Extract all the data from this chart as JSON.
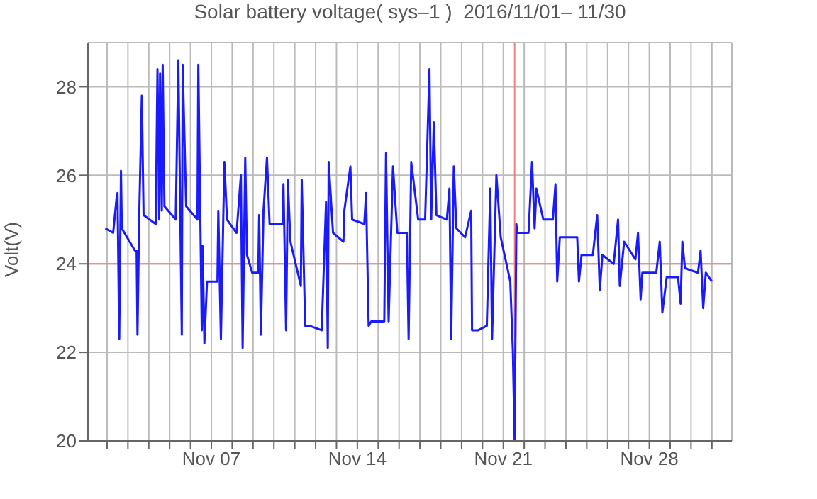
{
  "chart_data": {
    "type": "line",
    "title": "Solar battery voltage( sys–1 )  2016/11/01– 11/30",
    "ylabel": "Volt(V)",
    "x": [
      "2016-11-01T22:00",
      "2016-11-02T07:00",
      "2016-11-02T11:00",
      "2016-11-02T12:00",
      "2016-11-02T14:00",
      "2016-11-02T16:00",
      "2016-11-02T17:00",
      "2016-11-03T08:00",
      "2016-11-03T10:00",
      "2016-11-03T11:00",
      "2016-11-03T13:00",
      "2016-11-03T16:00",
      "2016-11-03T18:00",
      "2016-11-04T08:00",
      "2016-11-04T10:00",
      "2016-11-04T12:00",
      "2016-11-04T13:00",
      "2016-11-04T15:00",
      "2016-11-04T16:00",
      "2016-11-04T18:00",
      "2016-11-05T07:00",
      "2016-11-05T10:00",
      "2016-11-05T14:00",
      "2016-11-05T15:00",
      "2016-11-05T19:00",
      "2016-11-06T08:00",
      "2016-11-06T09:00",
      "2016-11-06T13:00",
      "2016-11-06T14:00",
      "2016-11-06T16:00",
      "2016-11-06T19:00",
      "2016-11-07T07:00",
      "2016-11-07T08:00",
      "2016-11-07T11:00",
      "2016-11-07T15:00",
      "2016-11-07T18:00",
      "2016-11-08T05:00",
      "2016-11-08T10:00",
      "2016-11-08T12:00",
      "2016-11-08T15:00",
      "2016-11-08T17:00",
      "2016-11-08T23:00",
      "2016-11-09T06:00",
      "2016-11-09T07:00",
      "2016-11-09T09:00",
      "2016-11-09T12:00",
      "2016-11-09T16:00",
      "2016-11-09T19:00",
      "2016-11-10T10:00",
      "2016-11-10T11:00",
      "2016-11-10T14:00",
      "2016-11-10T16:00",
      "2016-11-10T19:00",
      "2016-11-11T07:00",
      "2016-11-11T08:00",
      "2016-11-11T12:00",
      "2016-11-11T17:00",
      "2016-11-12T07:00",
      "2016-11-12T12:00",
      "2016-11-12T14:00",
      "2016-11-12T15:00",
      "2016-11-12T20:00",
      "2016-11-13T08:00",
      "2016-11-13T09:00",
      "2016-11-13T16:00",
      "2016-11-13T18:00",
      "2016-11-14T08:00",
      "2016-11-14T10:00",
      "2016-11-14T13:00",
      "2016-11-14T16:00",
      "2016-11-15T07:00",
      "2016-11-15T09:00",
      "2016-11-15T12:00",
      "2016-11-15T17:00",
      "2016-11-15T22:00",
      "2016-11-16T09:00",
      "2016-11-16T11:00",
      "2016-11-16T14:00",
      "2016-11-16T22:00",
      "2016-11-17T06:00",
      "2016-11-17T11:00",
      "2016-11-17T13:00",
      "2016-11-17T16:00",
      "2016-11-17T19:00",
      "2016-11-18T07:00",
      "2016-11-18T10:00",
      "2016-11-18T12:00",
      "2016-11-18T15:00",
      "2016-11-18T18:00",
      "2016-11-19T04:00",
      "2016-11-19T11:00",
      "2016-11-19T12:00",
      "2016-11-19T19:00",
      "2016-11-20T05:00",
      "2016-11-20T09:00",
      "2016-11-20T11:00",
      "2016-11-20T16:00",
      "2016-11-20T21:00",
      "2016-11-21T08:00",
      "2016-11-21T11:00",
      "2016-11-21T13:00",
      "2016-11-21T15:00",
      "2016-11-21T16:00",
      "2016-11-22T05:00",
      "2016-11-22T09:00",
      "2016-11-22T12:00",
      "2016-11-22T14:00",
      "2016-11-22T22:00",
      "2016-11-23T09:00",
      "2016-11-23T12:00",
      "2016-11-23T14:00",
      "2016-11-23T17:00",
      "2016-11-24T13:00",
      "2016-11-24T15:00",
      "2016-11-24T18:00",
      "2016-11-25T07:00",
      "2016-11-25T12:00",
      "2016-11-25T15:00",
      "2016-11-25T18:00",
      "2016-11-26T07:00",
      "2016-11-26T12:00",
      "2016-11-26T14:00",
      "2016-11-26T19:00",
      "2016-11-27T08:00",
      "2016-11-27T11:00",
      "2016-11-27T14:00",
      "2016-11-27T16:00",
      "2016-11-28T08:00",
      "2016-11-28T12:00",
      "2016-11-28T15:00",
      "2016-11-28T20:00",
      "2016-11-29T09:00",
      "2016-11-29T12:00",
      "2016-11-29T14:00",
      "2016-11-29T17:00",
      "2016-11-30T08:00",
      "2016-11-30T11:00",
      "2016-11-30T14:00",
      "2016-11-30T17:00",
      "2016-12-01T00:00"
    ],
    "series": [
      {
        "color": "#1a1aff",
        "values": [
          24.8,
          24.7,
          25.5,
          25.6,
          22.3,
          26.1,
          24.8,
          24.3,
          24.3,
          22.4,
          25.1,
          27.8,
          25.1,
          24.9,
          28.4,
          25.0,
          28.3,
          25.2,
          28.5,
          25.3,
          25.0,
          28.6,
          22.4,
          28.5,
          25.3,
          25.0,
          28.5,
          22.5,
          24.4,
          22.2,
          23.6,
          23.6,
          25.2,
          22.3,
          26.3,
          25.0,
          24.7,
          26.0,
          22.1,
          26.4,
          24.2,
          23.8,
          23.8,
          25.1,
          22.4,
          25.2,
          26.4,
          24.9,
          24.9,
          25.8,
          22.5,
          25.9,
          24.5,
          23.5,
          25.9,
          22.6,
          22.6,
          22.5,
          25.4,
          22.1,
          26.3,
          24.7,
          24.5,
          25.2,
          26.2,
          25.0,
          24.9,
          25.6,
          22.6,
          22.7,
          22.7,
          26.5,
          22.7,
          26.2,
          24.7,
          24.7,
          22.3,
          26.3,
          25.0,
          25.0,
          28.4,
          25.0,
          27.2,
          25.1,
          25.0,
          25.7,
          22.3,
          26.2,
          24.8,
          24.6,
          25.2,
          22.5,
          22.5,
          22.6,
          25.7,
          22.3,
          26.0,
          24.6,
          23.6,
          22.0,
          20.0,
          24.9,
          24.7,
          24.7,
          26.3,
          24.8,
          25.7,
          25.0,
          25.0,
          25.8,
          23.6,
          24.6,
          24.6,
          23.6,
          24.2,
          24.2,
          25.1,
          23.4,
          24.2,
          24.0,
          25.0,
          23.5,
          24.5,
          24.1,
          24.7,
          23.2,
          23.8,
          23.8,
          24.5,
          22.9,
          23.7,
          23.7,
          23.1,
          24.5,
          23.9,
          23.8,
          24.3,
          23.0,
          23.8,
          23.6
        ]
      }
    ],
    "xlim": [
      "2016-11-01T02:00",
      "2016-12-01T23:00"
    ],
    "xticks": [
      {
        "value": "2016-11-02",
        "label": null
      },
      {
        "value": "2016-11-03",
        "label": null
      },
      {
        "value": "2016-11-04",
        "label": null
      },
      {
        "value": "2016-11-05",
        "label": null
      },
      {
        "value": "2016-11-06",
        "label": null
      },
      {
        "value": "2016-11-07",
        "label": "Nov 07"
      },
      {
        "value": "2016-11-08",
        "label": null
      },
      {
        "value": "2016-11-09",
        "label": null
      },
      {
        "value": "2016-11-10",
        "label": null
      },
      {
        "value": "2016-11-11",
        "label": null
      },
      {
        "value": "2016-11-12",
        "label": null
      },
      {
        "value": "2016-11-13",
        "label": null
      },
      {
        "value": "2016-11-14",
        "label": "Nov 14"
      },
      {
        "value": "2016-11-15",
        "label": null
      },
      {
        "value": "2016-11-16",
        "label": null
      },
      {
        "value": "2016-11-17",
        "label": null
      },
      {
        "value": "2016-11-18",
        "label": null
      },
      {
        "value": "2016-11-19",
        "label": null
      },
      {
        "value": "2016-11-20",
        "label": null
      },
      {
        "value": "2016-11-21",
        "label": "Nov 21"
      },
      {
        "value": "2016-11-22",
        "label": null
      },
      {
        "value": "2016-11-23",
        "label": null
      },
      {
        "value": "2016-11-24",
        "label": null
      },
      {
        "value": "2016-11-25",
        "label": null
      },
      {
        "value": "2016-11-26",
        "label": null
      },
      {
        "value": "2016-11-27",
        "label": null
      },
      {
        "value": "2016-11-28",
        "label": "Nov 28"
      },
      {
        "value": "2016-11-29",
        "label": null
      },
      {
        "value": "2016-11-30",
        "label": null
      },
      {
        "value": "2016-12-01",
        "label": null
      }
    ],
    "ylim": [
      20,
      29
    ],
    "yticks": [
      20,
      22,
      24,
      26,
      28
    ],
    "ref_lines": [
      {
        "axis": "y",
        "value": 24,
        "color": "#f08080"
      },
      {
        "axis": "x",
        "value": "2016-11-21T13:00",
        "color": "#f08080"
      }
    ],
    "grid": true,
    "marker": "none",
    "line_style": "solid"
  }
}
